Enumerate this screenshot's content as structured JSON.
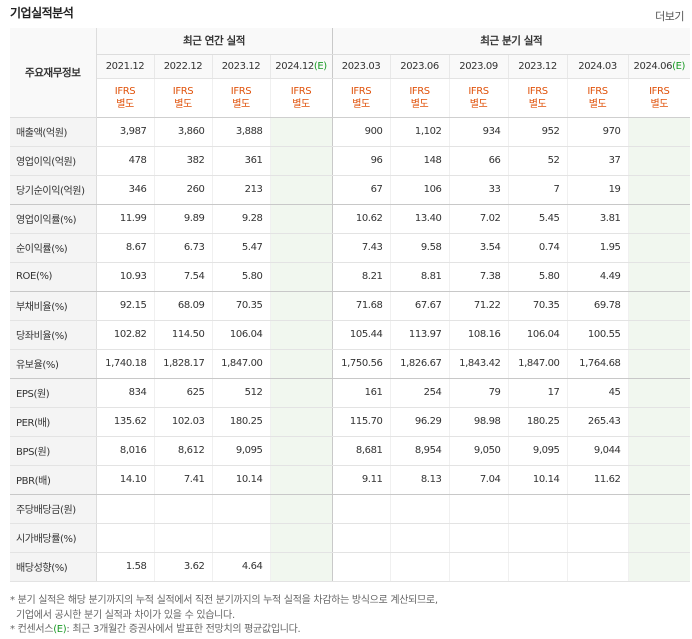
{
  "header": {
    "title": "기업실적분석",
    "more_label": "더보기"
  },
  "table": {
    "corner_label": "주요재무정보",
    "group_annual": "최근 연간 실적",
    "group_quarter": "최근 분기 실적",
    "periods": [
      {
        "label": "2021.12",
        "tag": ""
      },
      {
        "label": "2022.12",
        "tag": ""
      },
      {
        "label": "2023.12",
        "tag": ""
      },
      {
        "label": "2024.12",
        "tag": "(E)"
      },
      {
        "label": "2023.03",
        "tag": ""
      },
      {
        "label": "2023.06",
        "tag": ""
      },
      {
        "label": "2023.09",
        "tag": ""
      },
      {
        "label": "2023.12",
        "tag": ""
      },
      {
        "label": "2024.03",
        "tag": ""
      },
      {
        "label": "2024.06",
        "tag": "(E)"
      }
    ],
    "standard": {
      "line1": "IFRS",
      "line2": "별도"
    },
    "rows": [
      {
        "label": "매출액(억원)",
        "values": [
          "3,987",
          "3,860",
          "3,888",
          "",
          "900",
          "1,102",
          "934",
          "952",
          "970",
          ""
        ]
      },
      {
        "label": "영업이익(억원)",
        "values": [
          "478",
          "382",
          "361",
          "",
          "96",
          "148",
          "66",
          "52",
          "37",
          ""
        ]
      },
      {
        "label": "당기순이익(억원)",
        "values": [
          "346",
          "260",
          "213",
          "",
          "67",
          "106",
          "33",
          "7",
          "19",
          ""
        ]
      },
      {
        "label": "영업이익률(%)",
        "values": [
          "11.99",
          "9.89",
          "9.28",
          "",
          "10.62",
          "13.40",
          "7.02",
          "5.45",
          "3.81",
          ""
        ]
      },
      {
        "label": "순이익률(%)",
        "values": [
          "8.67",
          "6.73",
          "5.47",
          "",
          "7.43",
          "9.58",
          "3.54",
          "0.74",
          "1.95",
          ""
        ]
      },
      {
        "label": "ROE(%)",
        "values": [
          "10.93",
          "7.54",
          "5.80",
          "",
          "8.21",
          "8.81",
          "7.38",
          "5.80",
          "4.49",
          ""
        ]
      },
      {
        "label": "부채비율(%)",
        "values": [
          "92.15",
          "68.09",
          "70.35",
          "",
          "71.68",
          "67.67",
          "71.22",
          "70.35",
          "69.78",
          ""
        ]
      },
      {
        "label": "당좌비율(%)",
        "values": [
          "102.82",
          "114.50",
          "106.04",
          "",
          "105.44",
          "113.97",
          "108.16",
          "106.04",
          "100.55",
          ""
        ]
      },
      {
        "label": "유보율(%)",
        "values": [
          "1,740.18",
          "1,828.17",
          "1,847.00",
          "",
          "1,750.56",
          "1,826.67",
          "1,843.42",
          "1,847.00",
          "1,764.68",
          ""
        ]
      },
      {
        "label": "EPS(원)",
        "values": [
          "834",
          "625",
          "512",
          "",
          "161",
          "254",
          "79",
          "17",
          "45",
          ""
        ]
      },
      {
        "label": "PER(배)",
        "values": [
          "135.62",
          "102.03",
          "180.25",
          "",
          "115.70",
          "96.29",
          "98.98",
          "180.25",
          "265.43",
          ""
        ]
      },
      {
        "label": "BPS(원)",
        "values": [
          "8,016",
          "8,612",
          "9,095",
          "",
          "8,681",
          "8,954",
          "9,050",
          "9,095",
          "9,044",
          ""
        ]
      },
      {
        "label": "PBR(배)",
        "values": [
          "14.10",
          "7.41",
          "10.14",
          "",
          "9.11",
          "8.13",
          "7.04",
          "10.14",
          "11.62",
          ""
        ]
      },
      {
        "label": "주당배당금(원)",
        "values": [
          "",
          "",
          "",
          "",
          "",
          "",
          "",
          "",
          "",
          ""
        ]
      },
      {
        "label": "시가배당률(%)",
        "values": [
          "",
          "",
          "",
          "",
          "",
          "",
          "",
          "",
          "",
          ""
        ]
      },
      {
        "label": "배당성향(%)",
        "values": [
          "1.58",
          "3.62",
          "4.64",
          "",
          "",
          "",
          "",
          "",
          "",
          ""
        ]
      }
    ]
  },
  "notes": {
    "line1": "* 분기 실적은 해당 분기까지의 누적 실적에서 직전 분기까지의 누적 실적을 차감하는 방식으로 계산되므로,",
    "line2": "기업에서 공시한 분기 실적과 차이가 있을 수 있습니다.",
    "line3_prefix": "* 컨센서스",
    "line3_tag": "(E)",
    "line3_suffix": ": 최근 3개월간 증권사에서 발표한 전망치의 평균값입니다."
  },
  "colors": {
    "ifrs": "#e0530c",
    "estimate_bg": "#f1f7ef",
    "estimate_tag": "#1a9a26"
  }
}
